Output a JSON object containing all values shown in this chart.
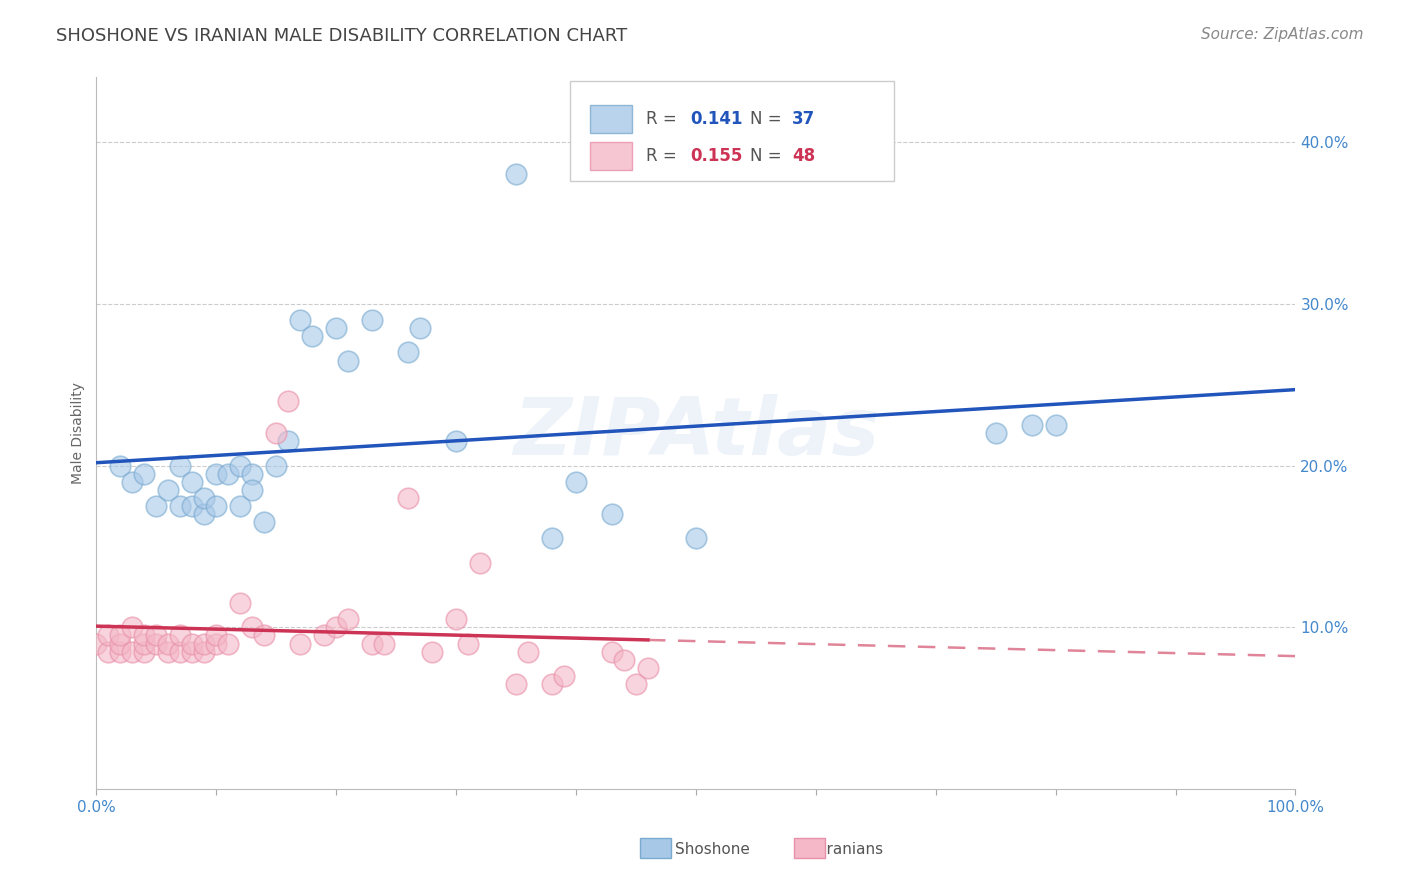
{
  "title": "SHOSHONE VS IRANIAN MALE DISABILITY CORRELATION CHART",
  "source": "Source: ZipAtlas.com",
  "ylabel": "Male Disability",
  "watermark": "ZIPAtlas",
  "shoshone_r": 0.141,
  "shoshone_n": 37,
  "iranian_r": 0.155,
  "iranian_n": 48,
  "xlim": [
    0.0,
    1.0
  ],
  "ylim": [
    0.0,
    0.44
  ],
  "xticks": [
    0.0,
    1.0
  ],
  "xtick_labels": [
    "0.0%",
    "100.0%"
  ],
  "yticks": [
    0.1,
    0.2,
    0.3,
    0.4
  ],
  "ytick_labels": [
    "10.0%",
    "20.0%",
    "30.0%",
    "40.0%"
  ],
  "grid_color": "#cccccc",
  "shoshone_color": "#a8c8e8",
  "shoshone_edge_color": "#7aaad0",
  "iranian_color": "#f4b8c8",
  "iranian_edge_color": "#e890a8",
  "shoshone_line_color": "#2255bb",
  "iranian_line_color": "#cc3355",
  "shoshone_x": [
    0.02,
    0.03,
    0.04,
    0.05,
    0.06,
    0.07,
    0.07,
    0.08,
    0.08,
    0.09,
    0.09,
    0.1,
    0.1,
    0.11,
    0.12,
    0.12,
    0.13,
    0.13,
    0.14,
    0.15,
    0.16,
    0.17,
    0.18,
    0.2,
    0.21,
    0.23,
    0.26,
    0.27,
    0.3,
    0.43,
    0.75,
    0.78,
    0.8,
    0.38,
    0.5,
    0.35,
    0.4
  ],
  "shoshone_y": [
    0.2,
    0.19,
    0.195,
    0.175,
    0.185,
    0.175,
    0.2,
    0.175,
    0.19,
    0.17,
    0.18,
    0.175,
    0.195,
    0.195,
    0.2,
    0.175,
    0.195,
    0.185,
    0.165,
    0.2,
    0.215,
    0.29,
    0.28,
    0.285,
    0.265,
    0.29,
    0.27,
    0.285,
    0.215,
    0.17,
    0.22,
    0.225,
    0.225,
    0.155,
    0.155,
    0.38,
    0.19
  ],
  "iranian_x": [
    0.0,
    0.01,
    0.01,
    0.02,
    0.02,
    0.02,
    0.03,
    0.03,
    0.04,
    0.04,
    0.04,
    0.05,
    0.05,
    0.06,
    0.06,
    0.07,
    0.07,
    0.08,
    0.08,
    0.09,
    0.09,
    0.1,
    0.1,
    0.11,
    0.12,
    0.13,
    0.14,
    0.15,
    0.16,
    0.17,
    0.19,
    0.2,
    0.21,
    0.23,
    0.24,
    0.26,
    0.28,
    0.3,
    0.31,
    0.32,
    0.35,
    0.36,
    0.38,
    0.39,
    0.43,
    0.44,
    0.45,
    0.46
  ],
  "iranian_y": [
    0.09,
    0.085,
    0.095,
    0.085,
    0.09,
    0.095,
    0.085,
    0.1,
    0.085,
    0.09,
    0.095,
    0.09,
    0.095,
    0.085,
    0.09,
    0.085,
    0.095,
    0.085,
    0.09,
    0.085,
    0.09,
    0.09,
    0.095,
    0.09,
    0.115,
    0.1,
    0.095,
    0.22,
    0.24,
    0.09,
    0.095,
    0.1,
    0.105,
    0.09,
    0.09,
    0.18,
    0.085,
    0.105,
    0.09,
    0.14,
    0.065,
    0.085,
    0.065,
    0.07,
    0.085,
    0.08,
    0.065,
    0.075
  ],
  "title_fontsize": 13,
  "axis_label_fontsize": 10,
  "tick_fontsize": 11,
  "source_fontsize": 11
}
